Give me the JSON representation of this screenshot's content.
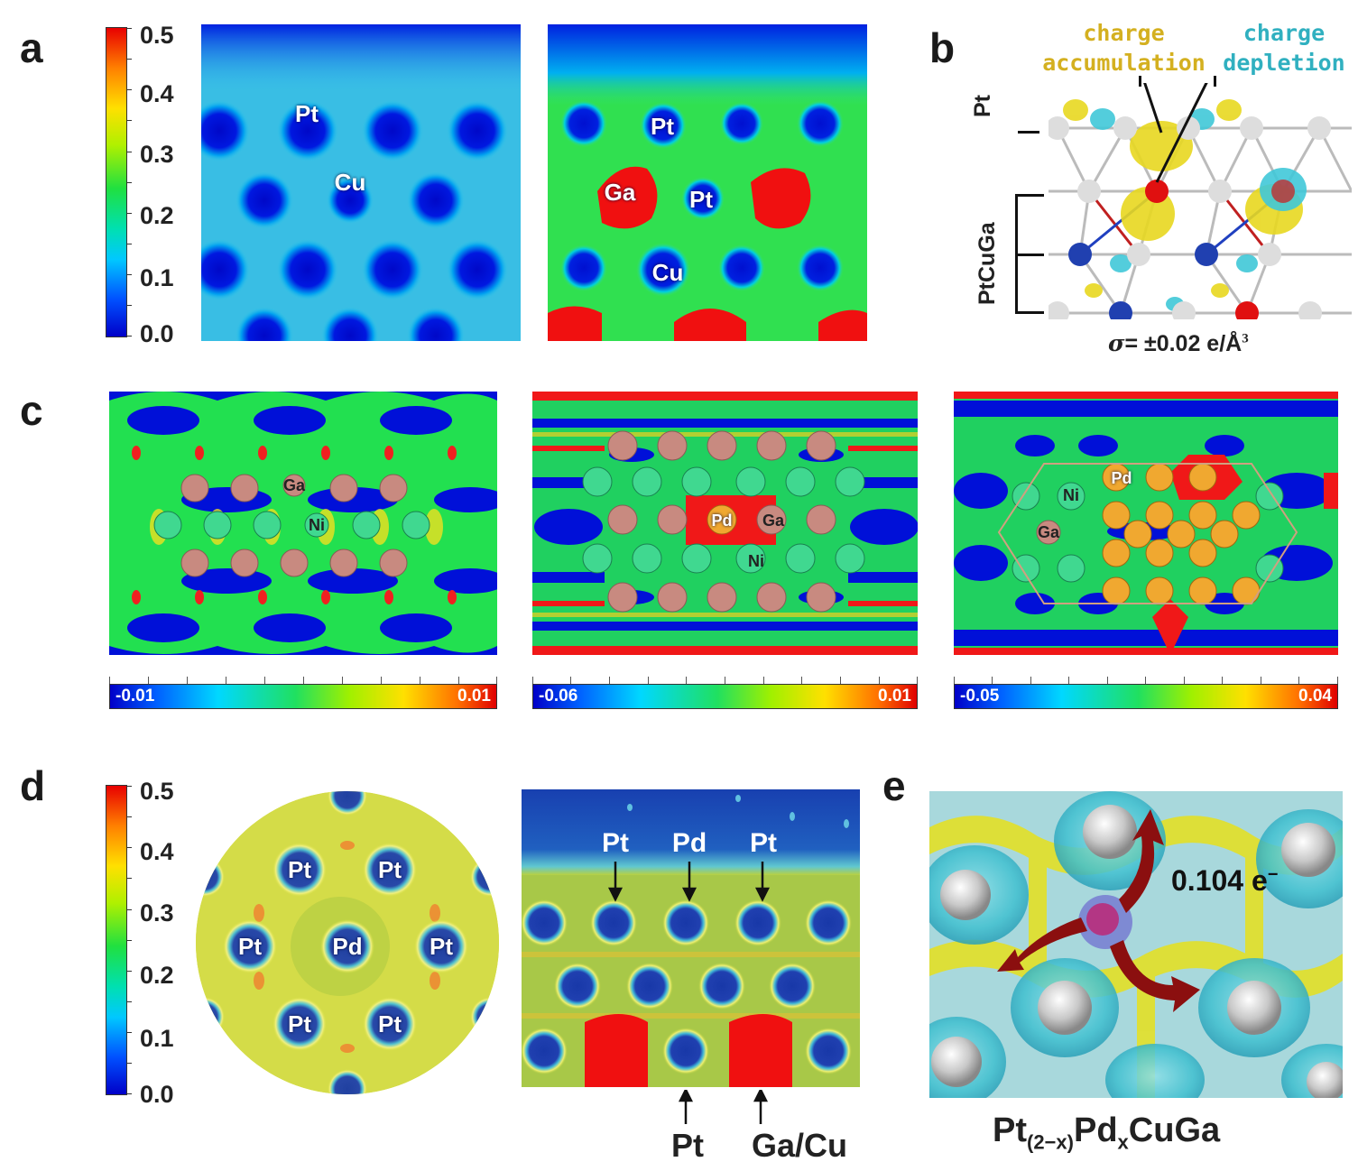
{
  "panels": {
    "a": {
      "letter": "a",
      "colorbar_ticks": [
        "0.5",
        "0.4",
        "0.3",
        "0.2",
        "0.1",
        "0.0"
      ],
      "left_map_labels": [
        "Pt",
        "Cu"
      ],
      "right_map_labels": [
        "Pt",
        "Ga",
        "Pt",
        "Cu"
      ]
    },
    "b": {
      "letter": "b",
      "accumulation_label_1": "charge",
      "accumulation_label_2": "accumulation",
      "depletion_label_1": "charge",
      "depletion_label_2": "depletion",
      "layer_top": "Pt",
      "layer_bottom": "PtCuGa",
      "sigma_symbol": "σ",
      "sigma_value": "= ±0.02 e/Å",
      "sigma_exp": "3"
    },
    "c": {
      "letter": "c",
      "map1": {
        "labels": [
          "Ga",
          "Ni"
        ],
        "cbar_min": "-0.01",
        "cbar_max": "0.01"
      },
      "map2": {
        "labels": [
          "Pd",
          "Ga",
          "Ni"
        ],
        "cbar_min": "-0.06",
        "cbar_max": "0.01"
      },
      "map3": {
        "labels": [
          "Ni",
          "Pd",
          "Ga"
        ],
        "cbar_min": "-0.05",
        "cbar_max": "0.04"
      }
    },
    "d": {
      "letter": "d",
      "colorbar_ticks": [
        "0.5",
        "0.4",
        "0.3",
        "0.2",
        "0.1",
        "0.0"
      ],
      "circle_labels": [
        "Pt",
        "Pt",
        "Pt",
        "Pd",
        "Pt",
        "Pt",
        "Pt"
      ],
      "top_labels": [
        "Pt",
        "Pd",
        "Pt"
      ],
      "bottom_labels": [
        "Pt",
        "Ga/Cu"
      ]
    },
    "e": {
      "letter": "e",
      "charge_value": "0.104 e",
      "charge_sup": "−",
      "formula_a": "Pt",
      "formula_sub1": "(2−x)",
      "formula_b": "Pd",
      "formula_sub2": "x",
      "formula_c": "CuGa"
    }
  },
  "colors": {
    "charge_accumulation": "#d4b020",
    "charge_depletion": "#30b0c0",
    "ga_atom": "#c88a80",
    "ni_atom": "#40d090",
    "pd_atom": "#f0a830"
  }
}
